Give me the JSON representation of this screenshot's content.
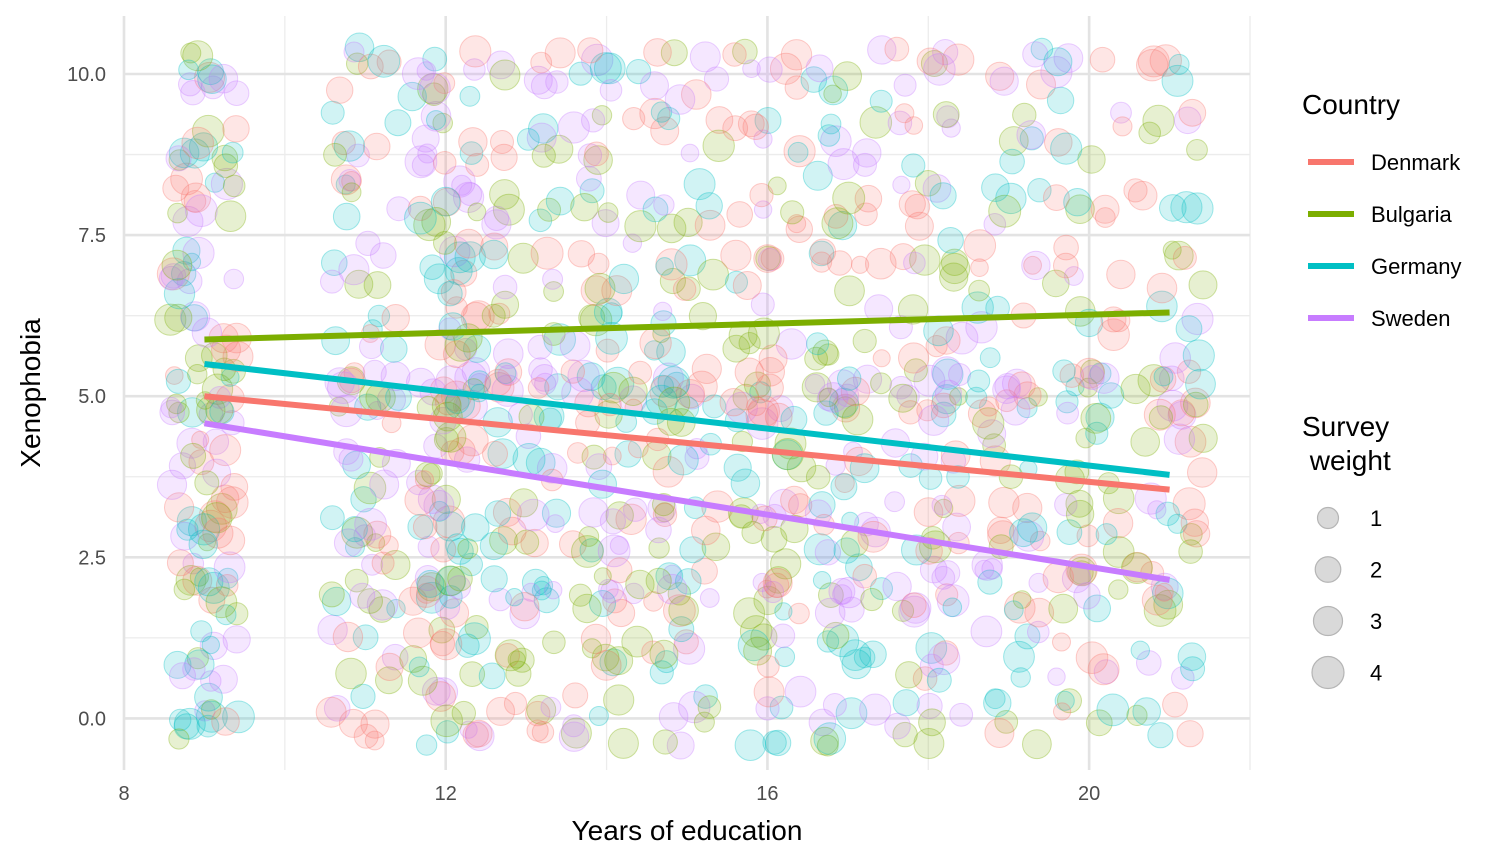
{
  "chart_data": {
    "type": "scatter",
    "xlabel": "Years of education",
    "ylabel": "Xenophobia",
    "xlim": [
      8,
      22
    ],
    "ylim": [
      -0.8,
      10.9
    ],
    "xticks": [
      8,
      12,
      16,
      20
    ],
    "xtick_labels": [
      "8",
      "12",
      "16",
      "20"
    ],
    "yticks": [
      0,
      2.5,
      5,
      7.5,
      10
    ],
    "ytick_labels": [
      "0.0",
      "2.5",
      "5.0",
      "7.5",
      "10.0"
    ],
    "grid": true,
    "legend_placement": "right",
    "point_alpha": 0.18,
    "country_legend": {
      "title": "Country",
      "entries": [
        {
          "name": "Denmark",
          "color": "#F8766D"
        },
        {
          "name": "Bulgaria",
          "color": "#7CAE00"
        },
        {
          "name": "Germany",
          "color": "#00BFC4"
        },
        {
          "name": "Sweden",
          "color": "#C77CFF"
        }
      ]
    },
    "size_legend": {
      "title_lines": [
        "Survey",
        " weight"
      ],
      "entries": [
        {
          "label": "1",
          "weight": 1
        },
        {
          "label": "2",
          "weight": 2
        },
        {
          "label": "3",
          "weight": 3
        },
        {
          "label": "4",
          "weight": 4
        }
      ]
    },
    "series": [
      {
        "name": "Denmark",
        "color": "#F8766D",
        "fit_line": {
          "x": [
            9,
            21
          ],
          "y": [
            5.0,
            3.55
          ]
        }
      },
      {
        "name": "Bulgaria",
        "color": "#7CAE00",
        "fit_line": {
          "x": [
            9,
            21
          ],
          "y": [
            5.88,
            6.3
          ]
        }
      },
      {
        "name": "Germany",
        "color": "#00BFC4",
        "fit_line": {
          "x": [
            9,
            21
          ],
          "y": [
            5.5,
            3.78
          ]
        }
      },
      {
        "name": "Sweden",
        "color": "#C77CFF",
        "fit_line": {
          "x": [
            9,
            21
          ],
          "y": [
            4.58,
            2.15
          ]
        }
      }
    ],
    "education_levels": [
      9,
      11,
      12,
      13,
      14,
      15,
      16,
      17,
      18,
      19,
      20,
      21
    ],
    "xenophobia_levels": [
      0,
      1,
      2,
      3,
      4,
      5,
      6,
      7,
      8,
      9,
      10
    ]
  }
}
